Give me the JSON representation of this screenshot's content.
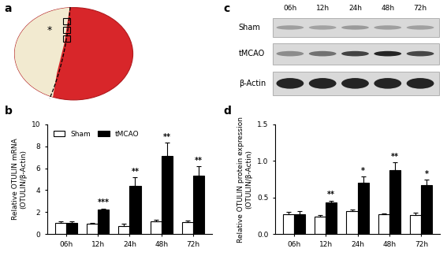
{
  "image_panel": {
    "panel_label": "a",
    "annotation": "*"
  },
  "blot_panel": {
    "panel_label": "c",
    "lanes": [
      "06h",
      "12h",
      "24h",
      "48h",
      "72h"
    ],
    "rows": [
      "Sham",
      "tMCAO",
      "β-Actin"
    ]
  },
  "chart_data": [
    {
      "type": "bar",
      "panel_label": "b",
      "ylabel": "Relative OTULIN mRNA\n(OTULIN/β-Actin)",
      "categories": [
        "06h",
        "12h",
        "24h",
        "48h",
        "72h"
      ],
      "series": [
        {
          "name": "Sham",
          "color": "#ffffff",
          "values": [
            1.0,
            0.95,
            0.75,
            1.2,
            1.1
          ],
          "errors": [
            0.2,
            0.1,
            0.2,
            0.1,
            0.15
          ]
        },
        {
          "name": "tMCAO",
          "color": "#000000",
          "values": [
            1.0,
            2.25,
            4.4,
            7.1,
            5.3
          ],
          "errors": [
            0.2,
            0.1,
            0.8,
            1.2,
            0.9
          ]
        }
      ],
      "significance": [
        null,
        "***",
        "**",
        "**",
        "**"
      ],
      "ylim": [
        0,
        10
      ],
      "yticks": [
        0,
        2,
        4,
        6,
        8,
        10
      ],
      "legend": "upper left"
    },
    {
      "type": "bar",
      "panel_label": "d",
      "ylabel": "Relative OTULIN protein expression\n(OTULIN/β-Actin)",
      "categories": [
        "06h",
        "12h",
        "24h",
        "48h",
        "72h"
      ],
      "series": [
        {
          "name": "Sham",
          "color": "#ffffff",
          "values": [
            0.27,
            0.24,
            0.31,
            0.27,
            0.26
          ],
          "errors": [
            0.03,
            0.02,
            0.03,
            0.01,
            0.03
          ]
        },
        {
          "name": "tMCAO",
          "color": "#000000",
          "values": [
            0.27,
            0.43,
            0.7,
            0.87,
            0.67
          ],
          "errors": [
            0.04,
            0.03,
            0.09,
            0.11,
            0.07
          ]
        }
      ],
      "significance": [
        null,
        "**",
        "*",
        "**",
        "*"
      ],
      "ylim": [
        0,
        1.5
      ],
      "yticks": [
        {
          "value": 0,
          "label": "0.0"
        },
        0.5,
        {
          "value": 1,
          "label": "1.0"
        },
        1.5
      ]
    }
  ]
}
